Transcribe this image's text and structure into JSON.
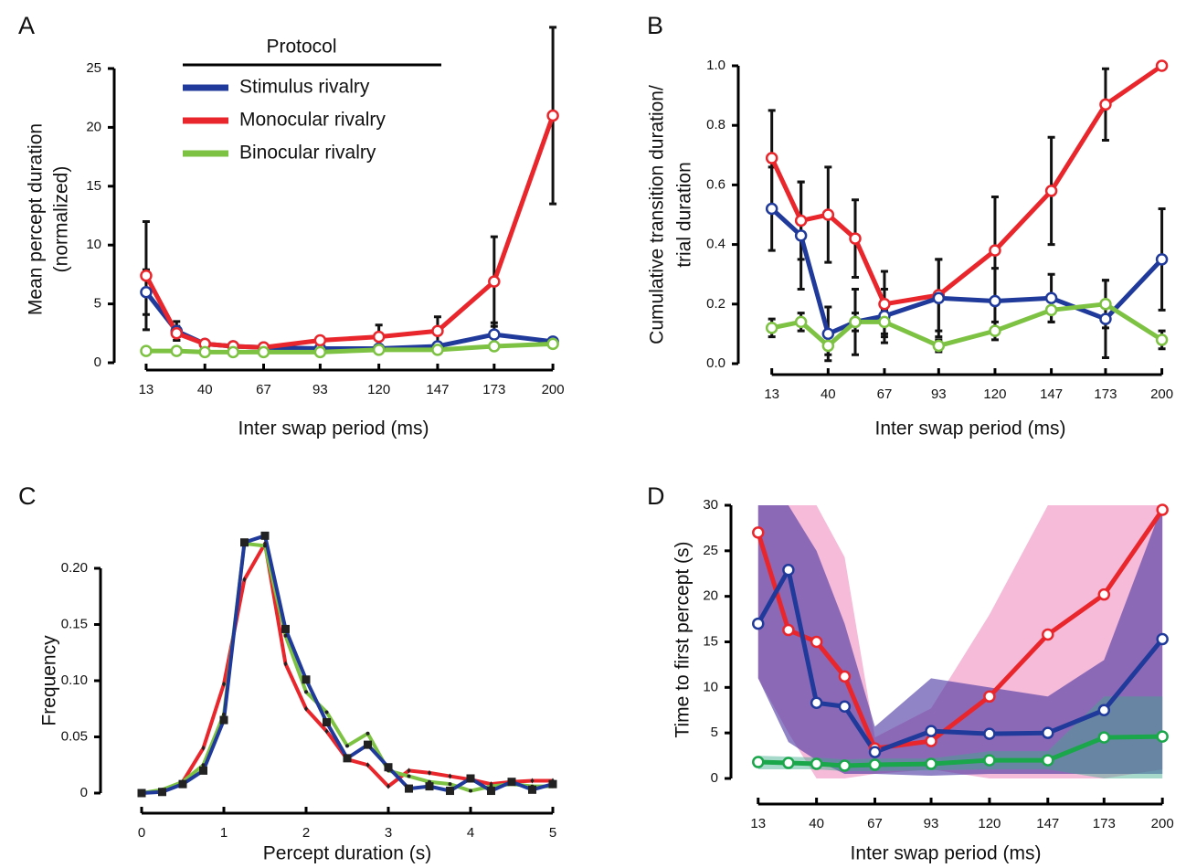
{
  "chart_data": [
    {
      "type": "line",
      "label": "A",
      "xlabel": "Inter swap period (ms)",
      "ylabel": [
        "Mean percept duration",
        "(normalized)"
      ],
      "legend_title": "Protocol",
      "x": [
        13,
        27,
        40,
        53,
        67,
        93,
        120,
        147,
        173,
        200
      ],
      "xlim": [
        0,
        205
      ],
      "xticks": [
        13,
        40,
        67,
        93,
        120,
        147,
        173,
        200
      ],
      "ylim": [
        0,
        25
      ],
      "yticks": [
        0,
        5,
        10,
        15,
        20,
        25
      ],
      "series": [
        {
          "name": "Stimulus rivalry",
          "color": "#1f3a9a",
          "values": [
            6.0,
            2.7,
            1.6,
            1.4,
            1.3,
            1.2,
            1.2,
            1.4,
            2.4,
            1.8
          ],
          "errors": [
            1.9,
            0.8,
            null,
            null,
            null,
            null,
            null,
            null,
            1.0,
            null
          ]
        },
        {
          "name": "Monocular rivalry",
          "color": "#e8262b",
          "values": [
            7.4,
            2.5,
            1.6,
            1.4,
            1.3,
            1.9,
            2.2,
            2.7,
            6.9,
            21.0
          ],
          "errors": [
            4.6,
            0.6,
            null,
            null,
            null,
            null,
            1.0,
            1.2,
            3.8,
            7.5
          ]
        },
        {
          "name": "Binocular rivalry",
          "color": "#7dc242",
          "values": [
            1.0,
            1.0,
            0.9,
            0.9,
            0.9,
            0.9,
            1.1,
            1.1,
            1.4,
            1.6
          ],
          "errors": [
            null,
            null,
            null,
            null,
            null,
            null,
            null,
            null,
            null,
            null
          ]
        }
      ]
    },
    {
      "type": "line",
      "label": "B",
      "xlabel": "Inter swap period (ms)",
      "ylabel": [
        "Cumulative transition duration/",
        "trial duration"
      ],
      "x": [
        13,
        27,
        40,
        53,
        67,
        93,
        120,
        147,
        173,
        200
      ],
      "xlim": [
        0,
        205
      ],
      "xticks": [
        13,
        40,
        67,
        93,
        120,
        147,
        173,
        200
      ],
      "ylim": [
        0,
        1
      ],
      "yticks": [
        {
          "value": 0,
          "label": "0.0"
        },
        0.2,
        0.4,
        0.6,
        0.8,
        {
          "value": 1,
          "label": "1.0"
        }
      ],
      "series": [
        {
          "color": "#e8262b",
          "values": [
            0.69,
            0.48,
            0.5,
            0.42,
            0.2,
            0.23,
            0.38,
            0.58,
            0.87,
            1.0
          ],
          "errors": [
            0.16,
            0.13,
            0.16,
            0.13,
            0.11,
            0.12,
            0.18,
            0.18,
            0.12,
            null
          ]
        },
        {
          "color": "#1f3a9a",
          "values": [
            0.52,
            0.43,
            0.1,
            0.14,
            0.16,
            0.22,
            0.21,
            0.22,
            0.15,
            0.35
          ],
          "errors": [
            0.14,
            0.18,
            0.09,
            0.11,
            0.09,
            0.13,
            0.11,
            0.08,
            0.13,
            0.17
          ]
        },
        {
          "color": "#7dc242",
          "values": [
            0.12,
            0.14,
            0.06,
            0.14,
            0.14,
            0.06,
            0.11,
            0.18,
            0.2,
            0.08
          ],
          "errors": [
            0.03,
            0.03,
            0.03,
            0.03,
            0.04,
            0.02,
            0.03,
            0.04,
            0.08,
            0.03
          ]
        }
      ]
    },
    {
      "type": "line",
      "label": "C",
      "xlabel": "Percept duration (s)",
      "ylabel": [
        "Frequency"
      ],
      "x": [
        0,
        0.25,
        0.5,
        0.75,
        1,
        1.25,
        1.5,
        1.75,
        2,
        2.25,
        2.5,
        2.75,
        3,
        3.25,
        3.5,
        3.75,
        4,
        4.25,
        4.5,
        4.75,
        5
      ],
      "xlim": [
        0,
        5
      ],
      "xticks": [
        0,
        1,
        2,
        3,
        4,
        5
      ],
      "ylim": [
        0,
        0.2
      ],
      "yticks": [
        0,
        0.05,
        {
          "value": 0.1,
          "label": "0.10"
        },
        0.15,
        {
          "value": 0.2,
          "label": "0.20"
        }
      ],
      "series": [
        {
          "color": "#e8262b",
          "marker": "diamond",
          "values": [
            0,
            0.002,
            0.01,
            0.04,
            0.097,
            0.19,
            0.222,
            0.115,
            0.075,
            0.055,
            0.03,
            0.025,
            0.006,
            0.02,
            0.018,
            0.015,
            0.012,
            0.008,
            0.01,
            0.011,
            0.011
          ]
        },
        {
          "color": "#7dc242",
          "marker": "dot",
          "values": [
            0,
            0.003,
            0.01,
            0.025,
            0.07,
            0.222,
            0.22,
            0.14,
            0.09,
            0.072,
            0.042,
            0.053,
            0.02,
            0.015,
            0.01,
            0.008,
            0.002,
            0.006,
            0.008,
            0.006,
            0.006
          ]
        },
        {
          "color": "#1f3a9a",
          "marker": "square",
          "values": [
            0,
            0.001,
            0.008,
            0.02,
            0.065,
            0.223,
            0.229,
            0.146,
            0.101,
            0.063,
            0.031,
            0.043,
            0.023,
            0.004,
            0.006,
            0.002,
            0.013,
            0.002,
            0.01,
            0.003,
            0.008
          ]
        }
      ]
    },
    {
      "type": "line",
      "label": "D",
      "xlabel": "Inter swap period (ms)",
      "ylabel": [
        "Time to first percept (s)"
      ],
      "x": [
        13,
        27,
        40,
        53,
        67,
        93,
        120,
        147,
        173,
        200
      ],
      "xlim": [
        0,
        205
      ],
      "xticks": [
        13,
        40,
        67,
        93,
        120,
        147,
        173,
        200
      ],
      "ylim": [
        0,
        30
      ],
      "yticks": [
        0,
        5,
        10,
        15,
        20,
        25,
        30
      ],
      "series": [
        {
          "color": "#e8262b",
          "band_color": "rgba(236,120,180,0.5)",
          "values": [
            27,
            16.3,
            15,
            11.2,
            3.3,
            4.1,
            9,
            15.8,
            20.2,
            29.5
          ],
          "lower": [
            11,
            5,
            0,
            0,
            0.5,
            1,
            0,
            0,
            0,
            1
          ],
          "upper": [
            30,
            30,
            30,
            24.3,
            4.5,
            7.7,
            18,
            30,
            30,
            30
          ]
        },
        {
          "color": "#1f3a9a",
          "band_color": "rgba(70,50,160,0.6)",
          "values": [
            17,
            22.9,
            8.3,
            7.9,
            2.9,
            5.2,
            4.9,
            5,
            7.5,
            15.3
          ],
          "lower": [
            11,
            4,
            2,
            0.5,
            0.5,
            0.3,
            0.5,
            0.5,
            0.5,
            0.5
          ],
          "upper": [
            30,
            30,
            25,
            17,
            5.7,
            11,
            10,
            9,
            13,
            30
          ]
        },
        {
          "color": "#1aa64a",
          "band_color": "rgba(60,170,140,0.45)",
          "values": [
            1.8,
            1.7,
            1.6,
            1.4,
            1.5,
            1.6,
            2,
            2,
            4.5,
            4.6
          ],
          "lower": [
            1,
            1,
            1,
            0.8,
            0.8,
            0.9,
            1,
            1,
            0,
            0
          ],
          "upper": [
            2.5,
            2.4,
            2.3,
            2.1,
            2.2,
            2.2,
            3,
            3,
            9,
            9
          ]
        }
      ]
    }
  ]
}
